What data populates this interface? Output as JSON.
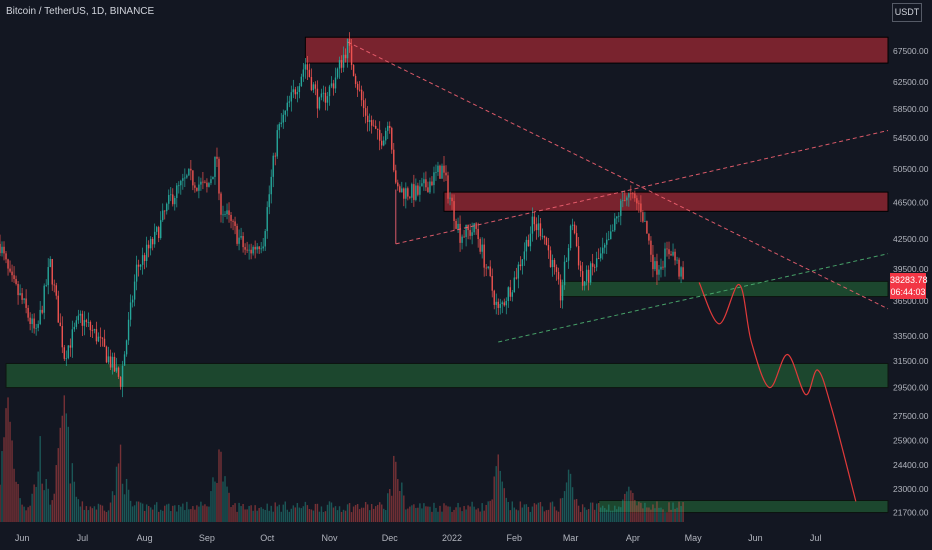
{
  "header": {
    "symbol_title": "Bitcoin / TetherUS, 1D, BINANCE",
    "currency": "USDT"
  },
  "last_price": {
    "price": "38283.78",
    "countdown": "06:44:03"
  },
  "colors": {
    "background": "#131722",
    "up": "#26a69a",
    "down": "#ef5350",
    "resistance_zone": "#8c2630",
    "support_zone": "#1f5030",
    "trend_red": "#f06070",
    "trend_green": "#4caf70",
    "projection": "#e03a3a",
    "text": "#b2b5be"
  },
  "chart_data": {
    "type": "candlestick",
    "symbol": "Bitcoin / TetherUS",
    "interval": "1D",
    "exchange": "BINANCE",
    "y_axis": {
      "ticks": [
        67500,
        62500,
        58500,
        54500,
        50500,
        46500,
        42500,
        39500,
        36500,
        33500,
        31500,
        29500,
        27500,
        25900,
        24400,
        23000,
        21700
      ],
      "tick_labels": [
        "67500.00",
        "62500.00",
        "58500.00",
        "54500.00",
        "50500.00",
        "46500.00",
        "42500.00",
        "39500.00",
        "36500.00",
        "33500.00",
        "31500.00",
        "29500.00",
        "27500.00",
        "25900.00",
        "24400.00",
        "23000.00",
        "21700.00"
      ],
      "scale": "log",
      "range": [
        21200,
        75000
      ]
    },
    "x_axis": {
      "tick_labels": [
        "Jun",
        "Jul",
        "Aug",
        "Sep",
        "Oct",
        "Nov",
        "Dec",
        "2022",
        "Feb",
        "Mar",
        "Apr",
        "May",
        "Jun",
        "Jul"
      ],
      "tick_dates": [
        "2021-06-01",
        "2021-07-01",
        "2021-08-01",
        "2021-09-01",
        "2021-10-01",
        "2021-11-01",
        "2021-12-01",
        "2022-01-01",
        "2022-02-01",
        "2022-03-01",
        "2022-04-01",
        "2022-05-01",
        "2022-06-01",
        "2022-07-01"
      ],
      "range": [
        "2021-05-21",
        "2022-08-06"
      ]
    },
    "price_path": [
      [
        "2021-05-21",
        42000
      ],
      [
        "2021-05-26",
        38500
      ],
      [
        "2021-06-01",
        36500
      ],
      [
        "2021-06-08",
        33500
      ],
      [
        "2021-06-15",
        40000
      ],
      [
        "2021-06-22",
        32000
      ],
      [
        "2021-06-30",
        35000
      ],
      [
        "2021-07-08",
        33500
      ],
      [
        "2021-07-20",
        30000
      ],
      [
        "2021-07-28",
        39500
      ],
      [
        "2021-08-06",
        42500
      ],
      [
        "2021-08-14",
        47000
      ],
      [
        "2021-08-23",
        49500
      ],
      [
        "2021-09-01",
        48000
      ],
      [
        "2021-09-06",
        52000
      ],
      [
        "2021-09-07",
        46500
      ],
      [
        "2021-09-21",
        41000
      ],
      [
        "2021-09-29",
        42500
      ],
      [
        "2021-10-06",
        55000
      ],
      [
        "2021-10-15",
        61500
      ],
      [
        "2021-10-20",
        65500
      ],
      [
        "2021-10-27",
        59000
      ],
      [
        "2021-11-03",
        62500
      ],
      [
        "2021-11-10",
        68500
      ],
      [
        "2021-11-18",
        58500
      ],
      [
        "2021-11-26",
        54000
      ],
      [
        "2021-12-01",
        57000
      ],
      [
        "2021-12-04",
        48000
      ],
      [
        "2021-12-15",
        47500
      ],
      [
        "2021-12-27",
        50500
      ],
      [
        "2022-01-05",
        43000
      ],
      [
        "2022-01-13",
        43500
      ],
      [
        "2022-01-24",
        35500
      ],
      [
        "2022-02-01",
        38500
      ],
      [
        "2022-02-10",
        44000
      ],
      [
        "2022-02-15",
        43500
      ],
      [
        "2022-02-24",
        37000
      ],
      [
        "2022-03-02",
        44500
      ],
      [
        "2022-03-07",
        38000
      ],
      [
        "2022-03-20",
        42000
      ],
      [
        "2022-03-28",
        47500
      ],
      [
        "2022-04-05",
        46000
      ],
      [
        "2022-04-12",
        39500
      ],
      [
        "2022-04-20",
        41500
      ],
      [
        "2022-04-26",
        38300
      ]
    ],
    "zones": [
      {
        "type": "resistance",
        "from": "2021-10-20",
        "to": "2022-08-06",
        "low": 65500,
        "high": 69800
      },
      {
        "type": "resistance",
        "from": "2021-12-28",
        "to": "2022-08-06",
        "low": 45500,
        "high": 47700
      },
      {
        "type": "support",
        "from": "2022-02-24",
        "to": "2022-08-06",
        "low": 36900,
        "high": 38300
      },
      {
        "type": "support",
        "from": "2021-05-24",
        "to": "2022-08-06",
        "low": 29500,
        "high": 31300
      },
      {
        "type": "support",
        "from": "2022-03-15",
        "to": "2022-08-06",
        "low": 21700,
        "high": 22350
      }
    ],
    "trendlines": [
      {
        "style": "dashed",
        "color": "red",
        "from": [
          "2021-11-10",
          69000
        ],
        "to": [
          "2022-08-06",
          35800
        ]
      },
      {
        "style": "dashed",
        "color": "red",
        "from": [
          "2021-12-04",
          42000
        ],
        "to": [
          "2022-08-06",
          55500
        ]
      },
      {
        "style": "dashed",
        "color": "green",
        "from": [
          "2022-01-24",
          33000
        ],
        "to": [
          "2022-08-06",
          41000
        ]
      },
      {
        "style": "solid",
        "color": "red",
        "from": [
          "2021-12-04",
          48000
        ],
        "to": [
          "2021-12-04",
          42000
        ]
      }
    ],
    "projection": [
      [
        "2022-05-04",
        38200
      ],
      [
        "2022-05-14",
        34500
      ],
      [
        "2022-05-24",
        38000
      ],
      [
        "2022-05-30",
        33000
      ],
      [
        "2022-06-08",
        29500
      ],
      [
        "2022-06-17",
        32000
      ],
      [
        "2022-06-26",
        29000
      ],
      [
        "2022-07-02",
        30800
      ],
      [
        "2022-07-09",
        28000
      ],
      [
        "2022-07-21",
        22300
      ]
    ],
    "volume": [
      {
        "date": "2021-05-25",
        "value": 1.0
      },
      {
        "date": "2021-06-10",
        "value": 0.55
      },
      {
        "date": "2021-06-22",
        "value": 0.95
      },
      {
        "date": "2021-07-20",
        "value": 0.55
      },
      {
        "date": "2021-09-07",
        "value": 0.6
      },
      {
        "date": "2021-12-04",
        "value": 0.5
      },
      {
        "date": "2022-01-24",
        "value": 0.45
      },
      {
        "date": "2022-02-28",
        "value": 0.4
      },
      {
        "date": "2022-03-30",
        "value": 0.3
      }
    ],
    "grid": false,
    "legend": "none"
  }
}
